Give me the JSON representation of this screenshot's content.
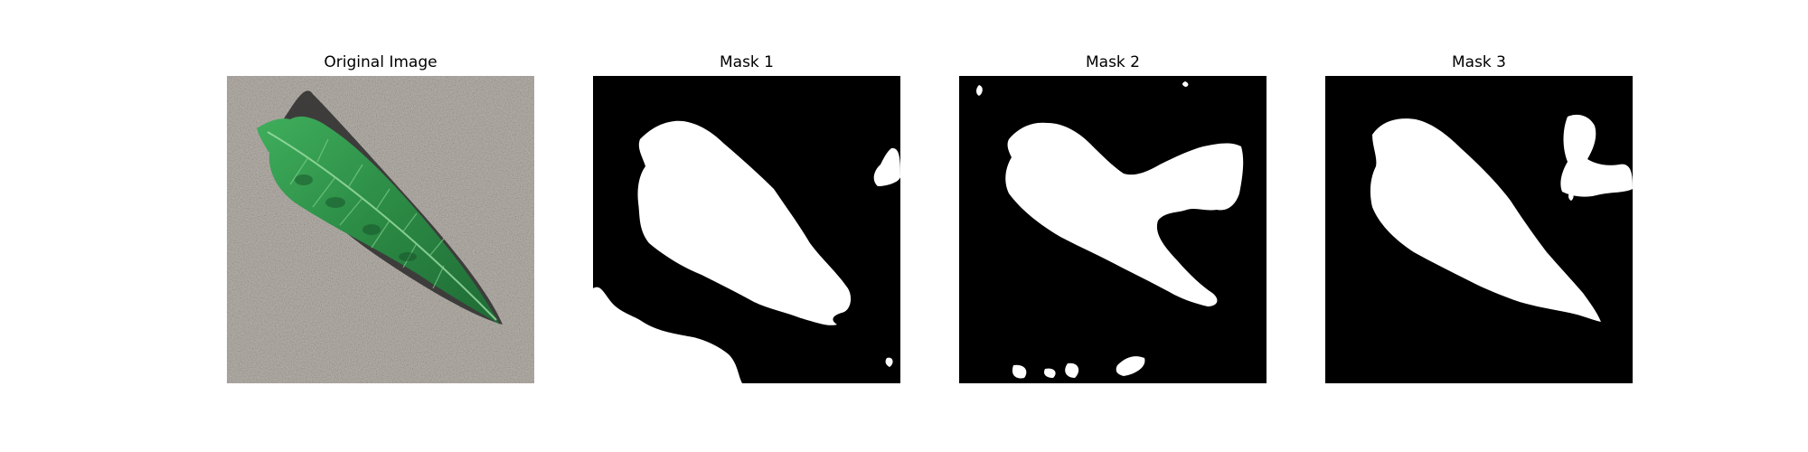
{
  "panels": [
    {
      "title": "Original Image",
      "kind": "photo"
    },
    {
      "title": "Mask 1",
      "kind": "mask"
    },
    {
      "title": "Mask 2",
      "kind": "mask"
    },
    {
      "title": "Mask 3",
      "kind": "mask"
    }
  ],
  "colors": {
    "mask_background": "#000000",
    "mask_foreground": "#ffffff",
    "concrete": "#a8a49d",
    "leaf_green": "#2f8a45"
  }
}
